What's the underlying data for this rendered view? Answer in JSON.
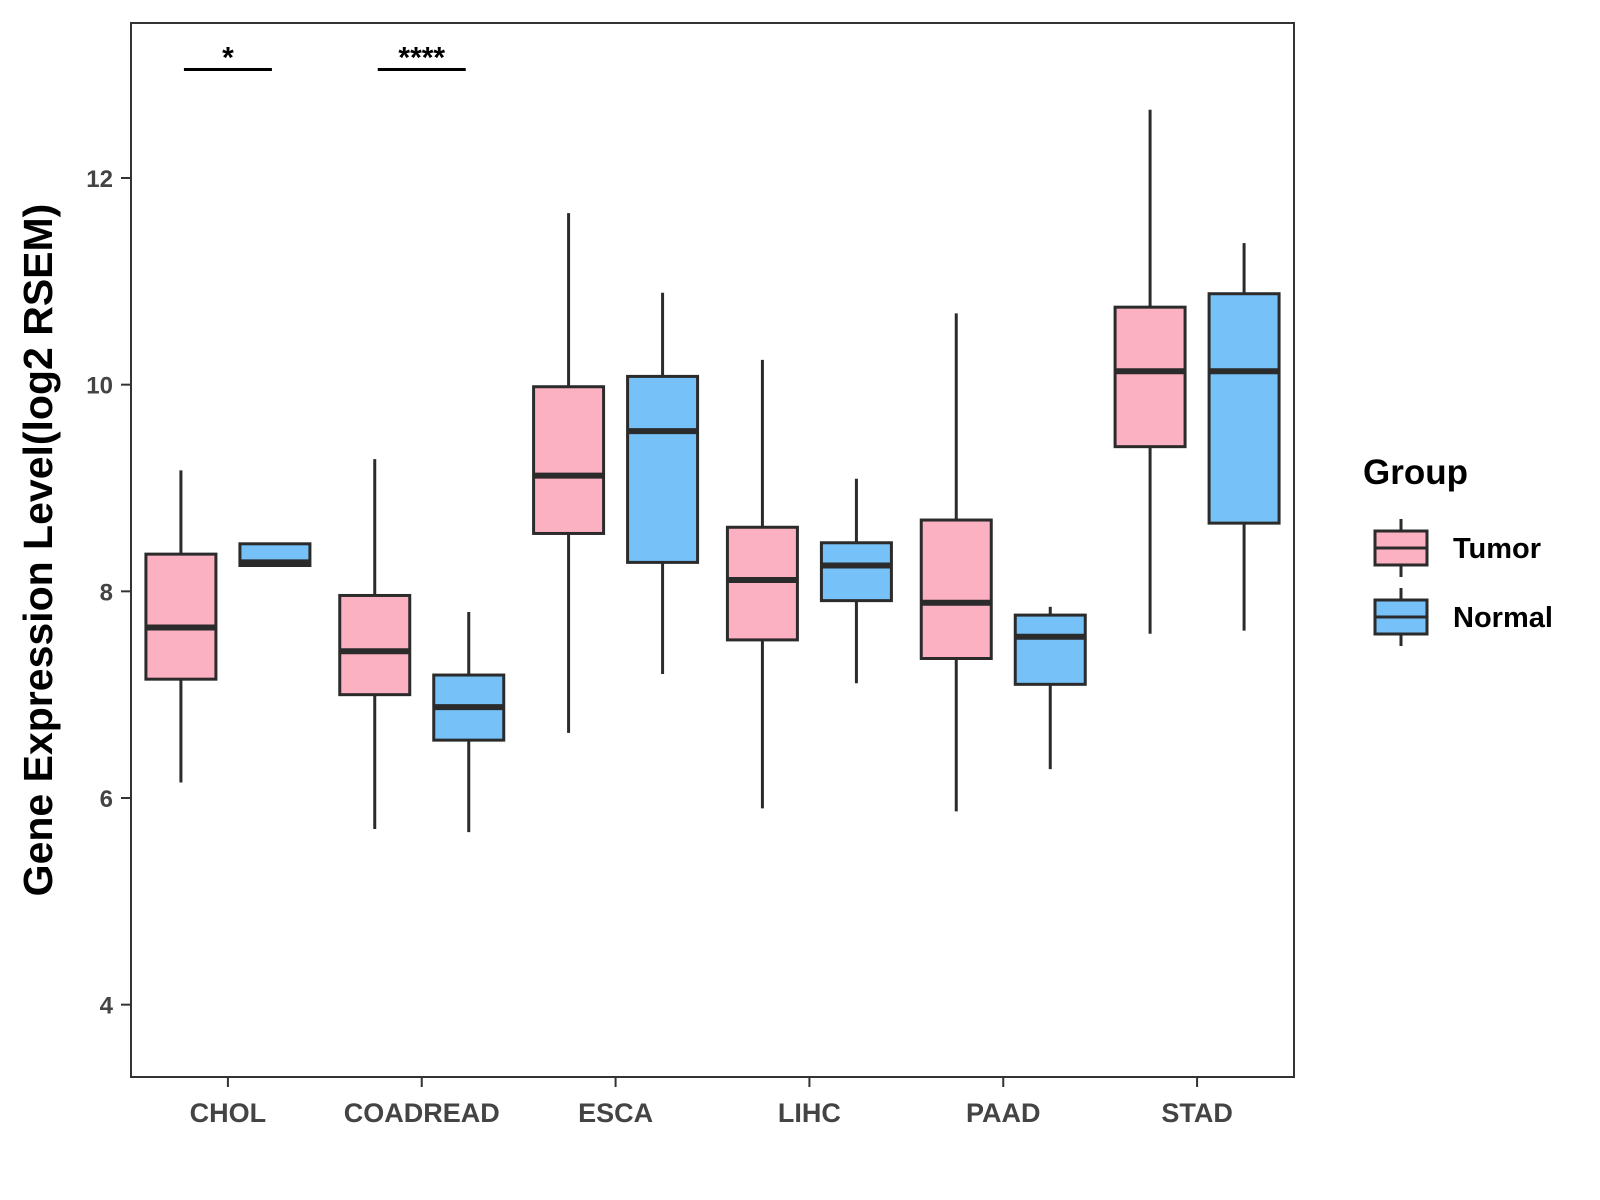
{
  "chart_data": {
    "type": "boxplot",
    "title": "",
    "xlabel": "",
    "ylabel": "Gene Expression Level(log2 RSEM)",
    "ylim": [
      3.3,
      13.5
    ],
    "yticks": [
      4,
      6,
      8,
      10,
      12
    ],
    "categories": [
      "CHOL",
      "COADREAD",
      "ESCA",
      "LIHC",
      "PAAD",
      "STAD"
    ],
    "legend": {
      "title": "Group",
      "position": "right",
      "entries": [
        {
          "name": "Tumor",
          "color": "#FBB1C1"
        },
        {
          "name": "Normal",
          "color": "#75C1F8"
        }
      ]
    },
    "series": [
      {
        "name": "Tumor",
        "color": "#FBB1C1",
        "boxes": [
          {
            "category": "CHOL",
            "min": 6.15,
            "q1": 7.15,
            "median": 7.65,
            "q3": 8.36,
            "max": 9.17
          },
          {
            "category": "COADREAD",
            "min": 5.7,
            "q1": 7.0,
            "median": 7.42,
            "q3": 7.96,
            "max": 9.28
          },
          {
            "category": "ESCA",
            "min": 6.63,
            "q1": 8.56,
            "median": 9.12,
            "q3": 9.98,
            "max": 11.66
          },
          {
            "category": "LIHC",
            "min": 5.9,
            "q1": 7.53,
            "median": 8.11,
            "q3": 8.62,
            "max": 10.24
          },
          {
            "category": "PAAD",
            "min": 5.87,
            "q1": 7.35,
            "median": 7.89,
            "q3": 8.69,
            "max": 10.69
          },
          {
            "category": "STAD",
            "min": 7.59,
            "q1": 9.4,
            "median": 10.13,
            "q3": 10.75,
            "max": 12.66
          }
        ]
      },
      {
        "name": "Normal",
        "color": "#75C1F8",
        "boxes": [
          {
            "category": "CHOL",
            "min": 8.25,
            "q1": 8.25,
            "median": 8.28,
            "q3": 8.46,
            "max": 8.46
          },
          {
            "category": "COADREAD",
            "min": 5.67,
            "q1": 6.56,
            "median": 6.88,
            "q3": 7.19,
            "max": 7.8
          },
          {
            "category": "ESCA",
            "min": 7.2,
            "q1": 8.28,
            "median": 9.55,
            "q3": 10.08,
            "max": 10.89
          },
          {
            "category": "LIHC",
            "min": 7.11,
            "q1": 7.91,
            "median": 8.25,
            "q3": 8.47,
            "max": 9.09
          },
          {
            "category": "PAAD",
            "min": 6.28,
            "q1": 7.1,
            "median": 7.56,
            "q3": 7.77,
            "max": 7.85
          },
          {
            "category": "STAD",
            "min": 7.62,
            "q1": 8.66,
            "median": 10.13,
            "q3": 10.88,
            "max": 11.37
          }
        ]
      }
    ],
    "annotations": [
      {
        "category": "CHOL",
        "label": "*",
        "y": 13.05
      },
      {
        "category": "COADREAD",
        "label": "****",
        "y": 13.05
      }
    ]
  }
}
